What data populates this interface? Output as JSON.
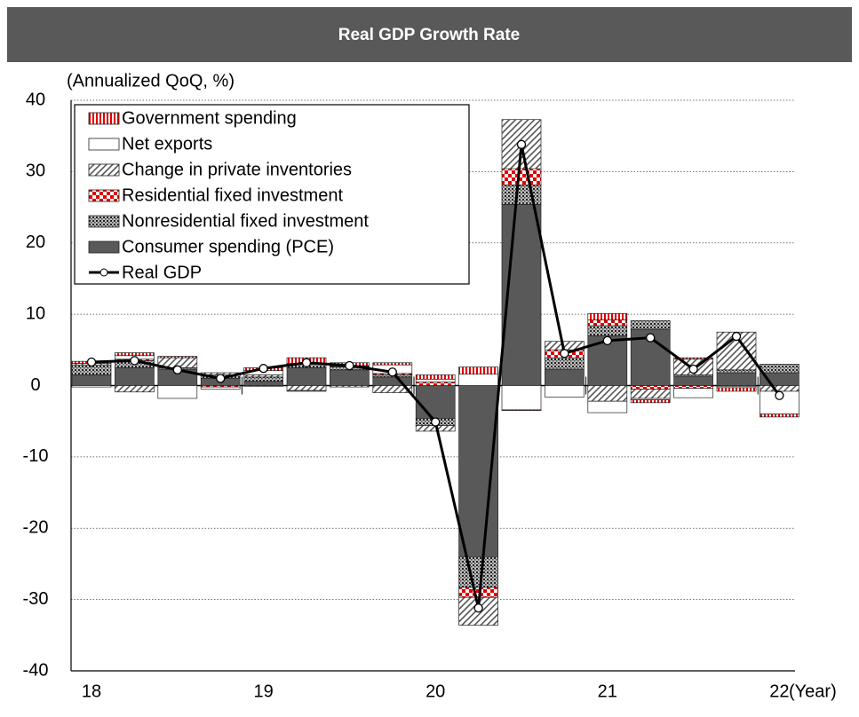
{
  "chart_data": {
    "type": "bar",
    "stacked": true,
    "title": "Real GDP Growth Rate",
    "y_axis_label": "(Annualized QoQ, %)",
    "x_axis_label": "(Year)",
    "categories": [
      "18",
      null,
      null,
      null,
      "19",
      null,
      null,
      null,
      "20",
      null,
      null,
      null,
      "21",
      null,
      null,
      null,
      "22"
    ],
    "ylim": [
      -40,
      40
    ],
    "yticks": [
      -40,
      -30,
      -20,
      -10,
      0,
      10,
      20,
      30,
      40
    ],
    "grid": true,
    "legend": "upper-left",
    "series": [
      {
        "name": "Consumer spending (PCE)",
        "color": "#595959",
        "pattern": "solid",
        "values": [
          1.5,
          2.5,
          2.3,
          1.0,
          0.6,
          2.5,
          2.2,
          1.2,
          -4.6,
          -24.0,
          25.4,
          2.3,
          7.0,
          7.9,
          1.3,
          1.8,
          1.8
        ]
      },
      {
        "name": "Nonresidential fixed investment",
        "color": "#333333",
        "pattern": "dots",
        "values": [
          1.4,
          1.0,
          0.2,
          0.5,
          0.6,
          0.5,
          0.4,
          0.3,
          -1.0,
          -4.3,
          2.7,
          1.6,
          1.4,
          1.2,
          0.2,
          0.4,
          1.2
        ]
      },
      {
        "name": "Residential fixed investment",
        "color": "#e00000",
        "pattern": "checker",
        "values": [
          0.0,
          0.2,
          0.0,
          -0.2,
          -0.1,
          0.1,
          0.1,
          0.2,
          0.5,
          -1.4,
          2.3,
          1.1,
          0.8,
          -0.5,
          -0.4,
          -0.1,
          0.0
        ]
      },
      {
        "name": "Change in private inventories",
        "color": "#555555",
        "pattern": "hatch",
        "values": [
          0.2,
          -0.9,
          1.4,
          0.3,
          0.3,
          -0.7,
          -0.2,
          -1.0,
          -0.8,
          -3.9,
          6.9,
          1.2,
          -2.2,
          -1.3,
          2.2,
          5.3,
          -0.8
        ]
      },
      {
        "name": "Net exports",
        "color": "#ffffff",
        "pattern": "none",
        "values": [
          -0.2,
          0.5,
          -1.8,
          -0.3,
          0.6,
          -0.1,
          0.1,
          1.2,
          0.4,
          1.6,
          -3.4,
          -1.6,
          -1.6,
          -0.2,
          -1.3,
          -0.2,
          -3.2
        ]
      },
      {
        "name": "Government spending",
        "color": "#e00000",
        "pattern": "stripes",
        "values": [
          0.3,
          0.4,
          0.2,
          0.0,
          0.4,
          0.8,
          0.4,
          0.3,
          0.6,
          1.0,
          -0.1,
          0.0,
          0.9,
          -0.4,
          0.2,
          -0.5,
          -0.4
        ]
      }
    ],
    "line": {
      "name": "Real GDP",
      "color": "#000000",
      "values": [
        3.3,
        3.5,
        2.2,
        1.0,
        2.4,
        3.2,
        2.8,
        1.9,
        -5.1,
        -31.2,
        33.8,
        4.5,
        6.3,
        6.7,
        2.3,
        6.9,
        -1.4
      ]
    }
  }
}
